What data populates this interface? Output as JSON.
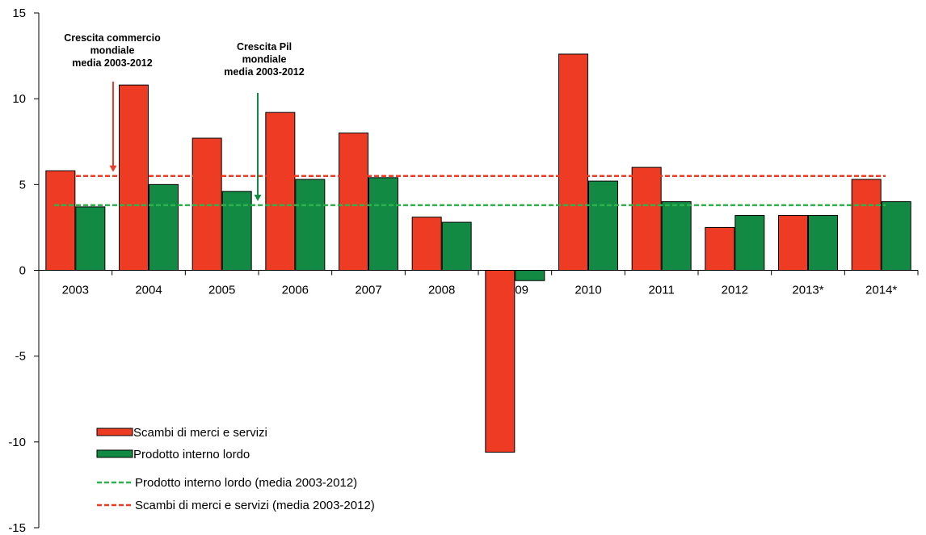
{
  "chart_data": {
    "type": "bar",
    "categories": [
      "2003",
      "2004",
      "2005",
      "2006",
      "2007",
      "2008",
      "2009",
      "2010",
      "2011",
      "2012",
      "2013*",
      "2014*"
    ],
    "series": [
      {
        "name": "Scambi di merci e servizi",
        "color": "#ee3b24",
        "values": [
          5.8,
          10.8,
          7.7,
          9.2,
          8.0,
          3.1,
          -10.6,
          12.6,
          6.0,
          2.5,
          3.2,
          5.3
        ]
      },
      {
        "name": "Prodotto interno lordo",
        "color": "#138a43",
        "values": [
          3.7,
          5.0,
          4.6,
          5.3,
          5.4,
          2.8,
          -0.6,
          5.2,
          4.0,
          3.2,
          3.2,
          4.0
        ]
      }
    ],
    "reference_lines": [
      {
        "name": "Prodotto interno lordo (media 2003-2012)",
        "value": 3.8,
        "color": "#2eb24b",
        "style": "dashed"
      },
      {
        "name": "Scambi di merci e servizi (media 2003-2012)",
        "value": 5.5,
        "color": "#ee3b24",
        "style": "dashed"
      }
    ],
    "annotations": [
      {
        "lines": [
          "Crescita commercio",
          "mondiale",
          "media 2003-2012"
        ],
        "color": "#ee3b24",
        "points_to": "Scambi di merci e servizi (media 2003-2012)"
      },
      {
        "lines": [
          "Crescita Pil",
          "mondiale",
          "media 2003-2012"
        ],
        "color": "#138a43",
        "points_to": "Prodotto interno lordo (media 2003-2012)"
      }
    ],
    "yticks": [
      "15",
      "10",
      "5",
      "0",
      "-5",
      "-10",
      "-15"
    ],
    "ylim": [
      -15,
      15
    ],
    "grid": false,
    "legend_position": "bottom-left"
  }
}
